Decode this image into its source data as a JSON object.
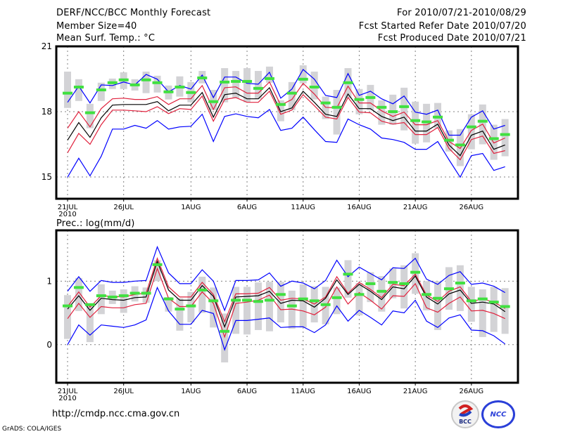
{
  "header": {
    "title": "DERF/NCC/BCC Monthly Forecast",
    "member_size": "Member Size=40",
    "variable_top": "Mean Surf. Temp.: °C",
    "period": "For 2010/07/21-2010/08/29",
    "started_refer": "Fcst Started Refer Date 2010/07/20",
    "produced": "Fcst Produced Date 2010/07/21"
  },
  "footer": {
    "url": "http://cmdp.ncc.cma.gov.cn",
    "grads": "GrADS: COLA/IGES",
    "logo_bcc": "BCC",
    "logo_ncc": "NCC"
  },
  "colors": {
    "upper_lower_bound": "#0000ff",
    "quartile": "#e0203c",
    "mean": "#000000",
    "observed": "#40e040",
    "box": "#d3d3d6",
    "grid": "#808080"
  },
  "chart_data": [
    {
      "type": "line",
      "title": "Mean Surf. Temp.: °C",
      "xlabel": "",
      "ylabel": "",
      "x_start": "2010-07-21",
      "x_tick_labels": [
        "21JUL",
        "26JUL",
        "1AUG",
        "6AUG",
        "11AUG",
        "16AUG",
        "21AUG",
        "26AUG"
      ],
      "x_tick_day_index": [
        0,
        5,
        11,
        16,
        21,
        26,
        31,
        36
      ],
      "x_year_label": "2010",
      "ylim": [
        14,
        21
      ],
      "y_ticks": [
        15,
        18,
        21
      ],
      "grid": true,
      "series": [
        {
          "name": "max",
          "role": "blue",
          "values": [
            18.43,
            19.17,
            18.4,
            19.23,
            19.2,
            19.36,
            19.23,
            19.71,
            19.49,
            18.91,
            19.2,
            19.04,
            19.68,
            18.65,
            19.59,
            19.59,
            19.3,
            19.26,
            19.81,
            18.62,
            19.04,
            19.94,
            19.49,
            18.75,
            18.65,
            19.75,
            18.75,
            18.94,
            18.59,
            18.36,
            18.72,
            17.98,
            17.88,
            18.07,
            16.92,
            16.92,
            17.75,
            18.04,
            17.2,
            17.37
          ]
        },
        {
          "name": "upper",
          "role": "red",
          "values": [
            17.24,
            18.0,
            17.3,
            18.14,
            18.59,
            18.62,
            18.56,
            18.56,
            18.69,
            18.33,
            18.59,
            18.59,
            19.2,
            18.1,
            19.1,
            19.14,
            18.85,
            18.85,
            19.36,
            18.3,
            18.56,
            19.3,
            18.81,
            18.2,
            18.17,
            19.17,
            18.4,
            18.4,
            18.04,
            17.78,
            17.98,
            17.4,
            17.4,
            17.59,
            16.63,
            16.31,
            17.14,
            17.43,
            16.56,
            16.79
          ]
        },
        {
          "name": "mean",
          "role": "black",
          "values": [
            16.69,
            17.5,
            16.82,
            17.72,
            18.3,
            18.33,
            18.33,
            18.33,
            18.46,
            18.04,
            18.3,
            18.3,
            18.88,
            17.75,
            18.78,
            18.85,
            18.59,
            18.59,
            19.1,
            18.0,
            18.17,
            18.94,
            18.43,
            17.88,
            17.78,
            18.81,
            18.14,
            18.14,
            17.78,
            17.59,
            17.75,
            17.11,
            17.11,
            17.43,
            16.47,
            15.98,
            16.92,
            17.11,
            16.27,
            16.47
          ]
        },
        {
          "name": "lower",
          "role": "red",
          "values": [
            16.11,
            17.0,
            16.5,
            17.4,
            18.07,
            18.07,
            18.04,
            18.0,
            18.23,
            17.91,
            18.14,
            18.1,
            18.72,
            17.56,
            18.56,
            18.65,
            18.43,
            18.43,
            18.94,
            17.88,
            18.07,
            18.78,
            18.27,
            17.75,
            17.66,
            18.65,
            17.98,
            17.95,
            17.56,
            17.43,
            17.5,
            16.95,
            16.95,
            17.27,
            16.31,
            15.79,
            16.72,
            16.88,
            16.08,
            16.21
          ]
        },
        {
          "name": "min",
          "role": "blue",
          "values": [
            14.99,
            15.86,
            15.05,
            15.95,
            17.2,
            17.2,
            17.37,
            17.24,
            17.59,
            17.2,
            17.3,
            17.33,
            17.88,
            16.63,
            17.78,
            17.9,
            17.78,
            17.72,
            18.1,
            17.14,
            17.24,
            17.75,
            17.17,
            16.63,
            16.59,
            17.66,
            17.4,
            17.2,
            16.79,
            16.72,
            16.59,
            16.27,
            16.27,
            16.63,
            15.79,
            14.99,
            15.98,
            16.08,
            15.3,
            15.47
          ]
        },
        {
          "name": "observed",
          "role": "green",
          "values": [
            18.85,
            19.13,
            17.95,
            19.0,
            19.33,
            19.46,
            19.23,
            19.46,
            19.33,
            18.91,
            19.13,
            18.88,
            19.55,
            18.46,
            19.36,
            19.39,
            19.39,
            19.07,
            19.52,
            18.33,
            18.85,
            19.49,
            19.13,
            18.4,
            18.2,
            19.33,
            18.56,
            18.65,
            18.2,
            18.0,
            18.23,
            17.59,
            17.53,
            17.75,
            16.69,
            16.47,
            17.3,
            17.56,
            16.76,
            16.95
          ]
        },
        {
          "name": "box_high",
          "role": "gray",
          "values": [
            19.84,
            19.49,
            18.36,
            19.33,
            19.52,
            19.81,
            19.49,
            19.84,
            19.65,
            19.2,
            19.62,
            19.36,
            19.87,
            19.0,
            20.0,
            19.87,
            20.0,
            19.87,
            20.07,
            18.52,
            19.36,
            20.13,
            19.84,
            18.69,
            19.0,
            20.0,
            19.04,
            19.23,
            18.52,
            18.78,
            19.1,
            18.46,
            18.36,
            18.4,
            17.14,
            17.2,
            17.88,
            18.33,
            17.4,
            17.66
          ]
        },
        {
          "name": "box_low",
          "role": "gray",
          "values": [
            18.17,
            18.49,
            17.24,
            18.49,
            19.04,
            19.04,
            18.97,
            18.85,
            18.88,
            18.56,
            18.69,
            18.43,
            19.3,
            18.07,
            18.43,
            18.62,
            18.43,
            18.59,
            19.33,
            17.56,
            18.07,
            19.3,
            18.56,
            17.66,
            16.95,
            18.62,
            17.88,
            18.07,
            17.4,
            17.4,
            17.14,
            16.53,
            16.59,
            17.24,
            16.17,
            15.5,
            16.27,
            16.5,
            15.79,
            15.95
          ]
        }
      ]
    },
    {
      "type": "line",
      "title": "Prec.: log(mm/d)",
      "xlabel": "",
      "ylabel": "",
      "x_start": "2010-07-21",
      "x_tick_labels": [
        "21JUL",
        "26JUL",
        "1AUG",
        "6AUG",
        "11AUG",
        "16AUG",
        "21AUG",
        "26AUG"
      ],
      "x_tick_day_index": [
        0,
        5,
        11,
        16,
        21,
        26,
        31,
        36
      ],
      "x_year_label": "2010",
      "ylim": [
        -0.6,
        1.8
      ],
      "y_ticks": [
        0,
        1
      ],
      "grid": true,
      "series": [
        {
          "name": "max",
          "role": "blue",
          "values": [
            0.84,
            1.07,
            0.84,
            1.01,
            0.98,
            0.98,
            1.0,
            1.01,
            1.54,
            1.13,
            0.96,
            0.96,
            1.18,
            1.0,
            0.54,
            1.01,
            1.01,
            1.02,
            1.13,
            0.92,
            1.0,
            0.97,
            0.88,
            1.01,
            1.33,
            1.07,
            1.22,
            1.12,
            1.02,
            1.21,
            1.2,
            1.36,
            1.03,
            0.95,
            1.09,
            1.15,
            0.95,
            0.97,
            0.92,
            0.82
          ]
        },
        {
          "name": "upper",
          "role": "red",
          "values": [
            0.6,
            0.83,
            0.59,
            0.77,
            0.76,
            0.75,
            0.79,
            0.81,
            1.36,
            0.91,
            0.75,
            0.75,
            0.98,
            0.79,
            0.36,
            0.8,
            0.8,
            0.81,
            0.9,
            0.7,
            0.73,
            0.72,
            0.64,
            0.75,
            1.07,
            0.81,
            0.98,
            0.87,
            0.74,
            0.95,
            0.93,
            1.11,
            0.78,
            0.68,
            0.84,
            0.91,
            0.68,
            0.72,
            0.67,
            0.57
          ]
        },
        {
          "name": "mean",
          "role": "black",
          "values": [
            0.56,
            0.77,
            0.54,
            0.73,
            0.71,
            0.7,
            0.74,
            0.75,
            1.31,
            0.86,
            0.7,
            0.7,
            0.93,
            0.76,
            0.28,
            0.75,
            0.76,
            0.77,
            0.84,
            0.65,
            0.7,
            0.69,
            0.59,
            0.73,
            1.02,
            0.79,
            0.95,
            0.84,
            0.71,
            0.91,
            0.88,
            1.08,
            0.75,
            0.64,
            0.8,
            0.86,
            0.65,
            0.67,
            0.64,
            0.52
          ]
        },
        {
          "name": "lower",
          "role": "red",
          "values": [
            0.41,
            0.65,
            0.43,
            0.6,
            0.58,
            0.58,
            0.63,
            0.65,
            1.2,
            0.73,
            0.6,
            0.6,
            0.83,
            0.65,
            0.12,
            0.65,
            0.67,
            0.7,
            0.78,
            0.55,
            0.56,
            0.53,
            0.47,
            0.59,
            0.91,
            0.64,
            0.82,
            0.7,
            0.56,
            0.77,
            0.76,
            0.96,
            0.58,
            0.51,
            0.65,
            0.75,
            0.53,
            0.54,
            0.49,
            0.41
          ]
        },
        {
          "name": "min",
          "role": "blue",
          "values": [
            0.0,
            0.31,
            0.15,
            0.31,
            0.29,
            0.27,
            0.31,
            0.39,
            0.9,
            0.53,
            0.32,
            0.32,
            0.54,
            0.49,
            -0.08,
            0.38,
            0.38,
            0.4,
            0.42,
            0.27,
            0.28,
            0.28,
            0.19,
            0.31,
            0.61,
            0.37,
            0.54,
            0.43,
            0.31,
            0.53,
            0.5,
            0.7,
            0.37,
            0.27,
            0.42,
            0.47,
            0.23,
            0.22,
            0.14,
            0.01
          ]
        },
        {
          "name": "observed",
          "role": "green",
          "values": [
            0.61,
            0.9,
            0.63,
            0.77,
            0.75,
            0.77,
            0.81,
            0.81,
            1.26,
            0.72,
            0.56,
            0.61,
            0.86,
            0.69,
            0.21,
            0.7,
            0.7,
            0.68,
            0.7,
            0.79,
            0.61,
            0.72,
            0.69,
            0.63,
            0.74,
            1.11,
            0.79,
            0.96,
            0.84,
            0.98,
            0.96,
            1.14,
            0.79,
            0.73,
            0.88,
            0.97,
            0.69,
            0.72,
            0.67,
            0.6
          ]
        },
        {
          "name": "box_high",
          "role": "gray",
          "values": [
            0.78,
            1.05,
            0.65,
            0.95,
            0.85,
            0.87,
            0.92,
            0.9,
            1.33,
            0.75,
            0.73,
            0.83,
            1.07,
            0.9,
            0.49,
            0.91,
            0.91,
            0.98,
            0.99,
            0.99,
            0.85,
            0.95,
            0.92,
            0.91,
            0.9,
            1.33,
            0.97,
            1.14,
            1.08,
            1.2,
            1.25,
            1.44,
            1.0,
            1.0,
            1.22,
            1.25,
            0.91,
            0.87,
            0.91,
            0.89
          ]
        },
        {
          "name": "box_low",
          "role": "gray",
          "values": [
            0.09,
            0.53,
            0.04,
            0.48,
            0.64,
            0.5,
            0.68,
            0.66,
            1.0,
            0.52,
            0.22,
            0.35,
            0.5,
            0.27,
            -0.28,
            0.17,
            0.16,
            0.23,
            0.21,
            0.35,
            0.25,
            0.27,
            0.35,
            0.32,
            0.48,
            0.74,
            0.46,
            0.67,
            0.52,
            0.73,
            0.57,
            0.8,
            0.54,
            0.23,
            0.55,
            0.53,
            0.36,
            0.12,
            0.2,
            0.17
          ]
        }
      ]
    }
  ]
}
